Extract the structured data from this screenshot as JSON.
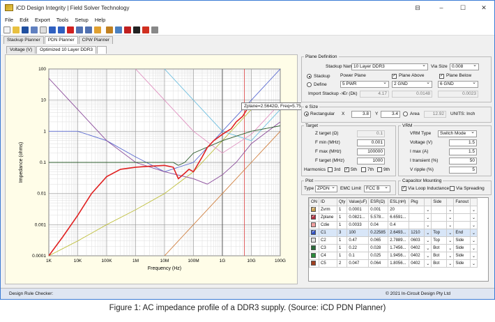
{
  "window": {
    "title": "iCD Design Integrity | Field Solver Technology",
    "minimize": "–",
    "maximize": "☐",
    "close": "✕",
    "ctrl": "⊟"
  },
  "menu": [
    "File",
    "Edit",
    "Export",
    "Tools",
    "Setup",
    "Help"
  ],
  "tabs": [
    "Stackup Planner",
    "PDN Planner",
    "CPW Planner"
  ],
  "subtabs": [
    "Voltage (V)",
    "Optimized 10 Layer DDR3"
  ],
  "plane": {
    "legend": "Plane Definition",
    "stackup_name_label": "Stackup Name:",
    "stackup_name": "10 Layer DDR3",
    "via_size_label": "Via Size",
    "via_size": "0.008",
    "stackup_radio": "Stackup",
    "define_radio": "Define",
    "power_plane_label": "Power Plane",
    "power_plane": "5 PWR",
    "plane_above_label": "Plane Above",
    "plane_above": "2 GND",
    "plane_below_label": "Plane Below",
    "plane_below": "6 GND",
    "import_label": "Import Stackup ->",
    "er_label": "Er (Dk)",
    "er_value": "4.17",
    "v2": "0.0148",
    "v3": "0.0023"
  },
  "size": {
    "legend": "e Size",
    "rect_label": "Rectangular",
    "x_label": "X",
    "x": "3.8",
    "y_label": "Y",
    "y": "3.4",
    "area_label": "Area",
    "area": "12.92",
    "units": "UNITS: Inch"
  },
  "target": {
    "legend": "Target",
    "rows": [
      {
        "label": "Z target (Ω)",
        "value": "0.1"
      },
      {
        "label": "F min (MHz)",
        "value": "0.001"
      },
      {
        "label": "F max (MHz)",
        "value": "100000"
      },
      {
        "label": "F target (MHz)",
        "value": "1000"
      }
    ],
    "harmonics_label": "Harmonics",
    "harmonics": [
      "3rd",
      "5th",
      "7th",
      "9th"
    ]
  },
  "vrm": {
    "legend": "VRM",
    "type_label": "VRM Type",
    "type": "Switch Mode",
    "rows": [
      {
        "label": "Voltage (V)",
        "value": "1.5"
      },
      {
        "label": "I max (A)",
        "value": "1.5"
      },
      {
        "label": "I transient (%)",
        "value": "50"
      },
      {
        "label": "V ripple (%)",
        "value": "5"
      }
    ]
  },
  "plot": {
    "legend": "Plot",
    "type_label": "Type",
    "type": "ZPDN",
    "emc_label": "EMC Limit",
    "emc": "FCC B"
  },
  "mounting": {
    "legend": "Capacitor Mounting",
    "via_loop": "Via Loop Inductance",
    "via_spreading": "Via Spreading"
  },
  "table": {
    "headers": [
      "ON",
      "ID",
      "Qty",
      "Value(uF)",
      "ESR(Ω)",
      "ESL(nH)",
      "Pkg",
      "",
      "Side",
      "",
      "Fanout",
      ""
    ],
    "rows": [
      {
        "color": "#c8a050",
        "on": true,
        "id": "Zvrm",
        "qty": "1",
        "value": "0.0001",
        "esr": "0.001",
        "esl": "20",
        "pkg": "",
        "side": "",
        "fanout": ""
      },
      {
        "color": "#b03040",
        "on": true,
        "id": "Zplane",
        "qty": "1",
        "value": "0.0821...",
        "esr": "5.578...",
        "esl": "6.6591...",
        "pkg": "",
        "side": "",
        "fanout": ""
      },
      {
        "color": "#f0a0a0",
        "on": false,
        "id": "Cdie",
        "qty": "1",
        "value": "0.0033",
        "esr": "0.04",
        "esl": "0.4",
        "pkg": "",
        "side": "",
        "fanout": ""
      },
      {
        "color": "#3050c0",
        "on": true,
        "id": "C1",
        "qty": "3",
        "value": "100",
        "esr": "0.22585",
        "esl": "2.6493...",
        "pkg": "1210",
        "side": "Top",
        "fanout": "End"
      },
      {
        "color": "#e0e0e0",
        "on": false,
        "id": "C2",
        "qty": "1",
        "value": "0.47",
        "esr": "0.065",
        "esl": "2.7889...",
        "pkg": "0603",
        "side": "Top",
        "fanout": "Side"
      },
      {
        "color": "#2a6a3a",
        "on": false,
        "id": "C3",
        "qty": "1",
        "value": "0.22",
        "esr": "0.028",
        "esl": "1.7456...",
        "pkg": "0402",
        "side": "Bot",
        "fanout": "Side"
      },
      {
        "color": "#2a8a3a",
        "on": false,
        "id": "C4",
        "qty": "1",
        "value": "0.1",
        "esr": "0.025",
        "esl": "1.9456...",
        "pkg": "0402",
        "side": "Bot",
        "fanout": "Side"
      },
      {
        "color": "#a04020",
        "on": false,
        "id": "C5",
        "qty": "2",
        "value": "0.047",
        "esr": "0.064",
        "esl": "1.8056...",
        "pkg": "0402",
        "side": "Bot",
        "fanout": "Side"
      }
    ]
  },
  "status": {
    "left": "Design Rule Checker:",
    "right": "© 2021 In-Circuit Design Pty Ltd"
  },
  "tooltip": "Zplane=2.5642Ω, Freq=5.75GHz",
  "caption": "Figure 1: AC impedance profile of a DDR3 supply. (Source: iCD PDN Planner)",
  "chart_data": {
    "type": "line",
    "xlabel": "Frequency (Hz)",
    "ylabel": "Impedance (ohms)",
    "xscale": "log",
    "yscale": "log",
    "xlim": [
      1000,
      100000000000
    ],
    "ylim": [
      0.0001,
      100
    ],
    "xticks": [
      "1K",
      "10K",
      "100K",
      "1M",
      "10M",
      "100M",
      "1G",
      "10G",
      "100G"
    ],
    "yticks": [
      "100",
      "10",
      "1",
      "0.1",
      "0.01",
      "0.001",
      "0.0001"
    ],
    "grid": true,
    "series": [
      {
        "color": "#e02020",
        "x": [
          1000,
          3000,
          10000,
          30000,
          100000,
          300000,
          1000000,
          3000000,
          10000000,
          20000000,
          30000000,
          50000000,
          70000000,
          100000000,
          200000000,
          300000000,
          500000000,
          1000000000,
          2000000000,
          3000000000,
          5000000000,
          7000000000,
          10000000000,
          20000000000
        ],
        "y": [
          0.0001,
          0.0004,
          0.002,
          0.01,
          0.035,
          0.06,
          0.07,
          0.075,
          0.08,
          0.07,
          0.03,
          0.045,
          0.06,
          0.05,
          0.15,
          0.3,
          0.5,
          0.8,
          1.2,
          2,
          3,
          5,
          8,
          5
        ]
      },
      {
        "color": "#2a5a2a",
        "x": [
          1000,
          10000,
          100000,
          1000000,
          10000000,
          20000000,
          30000000,
          50000000,
          100000000,
          1000000000,
          10000000000,
          100000000000
        ],
        "y": [
          0.1,
          0.1,
          0.1,
          0.1,
          0.1,
          0.1,
          0.08,
          0.1,
          0.2,
          0.5,
          1,
          1.5
        ]
      },
      {
        "color": "#8a4a9a",
        "x": [
          1000,
          10000,
          100000,
          1000000,
          10000000,
          100000000,
          300000000,
          1000000000,
          3000000000,
          10000000000,
          100000000000
        ],
        "y": [
          50,
          5,
          0.5,
          0.1,
          0.05,
          0.03,
          0.02,
          0.04,
          0.1,
          0.4,
          2
        ]
      },
      {
        "color": "#d08040",
        "x": [
          10000000,
          100000000,
          1000000000,
          10000000000,
          100000000000
        ],
        "y": [
          0.0001,
          0.001,
          0.01,
          0.1,
          1
        ]
      },
      {
        "color": "#5a6ad0",
        "x": [
          1000,
          10000,
          100000,
          1000000,
          10000000,
          100000000,
          1000000000,
          10000000000,
          100000000000
        ],
        "y": [
          1,
          1,
          0.5,
          0.15,
          0.05,
          0.1,
          1,
          10,
          100
        ]
      },
      {
        "color": "#e090c0",
        "x": [
          1000000,
          10000000,
          100000000,
          1000000000,
          10000000000,
          100000000000
        ],
        "y": [
          100,
          10,
          1,
          0.2,
          0.8,
          8
        ]
      },
      {
        "color": "#70c0e0",
        "x": [
          10000000,
          100000000,
          1000000000,
          10000000000,
          100000000000
        ],
        "y": [
          100,
          10,
          1,
          0.5,
          5
        ]
      },
      {
        "color": "#c0c040",
        "x": [
          1000,
          10000,
          100000,
          1000000,
          10000000,
          100000000,
          1000000000,
          10000000000
        ],
        "y": [
          0.0001,
          0.0003,
          0.001,
          0.003,
          0.01,
          0.05,
          0.5,
          5
        ]
      }
    ],
    "markers": [
      {
        "x": 1000000000,
        "color": "#444"
      },
      {
        "x": 5750000000,
        "color": "#e04040"
      }
    ]
  }
}
